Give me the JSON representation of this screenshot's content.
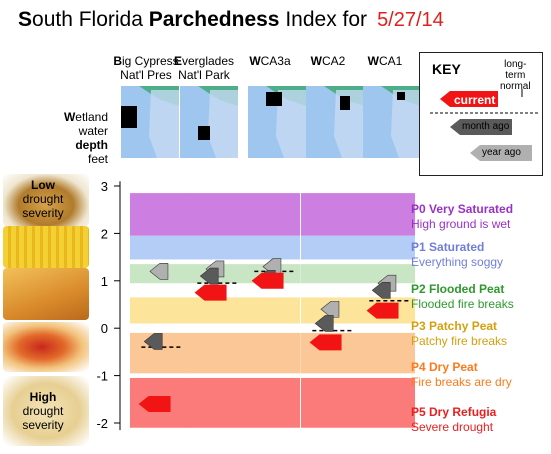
{
  "title": {
    "s": "S",
    "outh": "outh Florida ",
    "bold": "Parchedness",
    "rest": " Index for",
    "date": "5/27/14"
  },
  "regions": [
    {
      "line1_bold": "B",
      "line1": "ig Cypress",
      "line2": "Nat'l Pres"
    },
    {
      "line1_bold": "E",
      "line1": "verglades",
      "line2": "Nat'l Park"
    },
    {
      "line1_bold": "W",
      "line1": "CA3a",
      "line2": ""
    },
    {
      "line1_bold": "W",
      "line1": "CA2",
      "line2": ""
    },
    {
      "line1_bold": "W",
      "line1": "CA1",
      "line2": ""
    }
  ],
  "y_label": {
    "w": "W",
    "etland": "etland",
    "water": "water",
    "depth": "depth",
    "feet": "feet"
  },
  "food_labels": {
    "low_line1": "Low",
    "low_line2": "drought",
    "low_line3": "severity",
    "high_line1": "High",
    "high_line2": "drought",
    "high_line3": "severity"
  },
  "key": {
    "title": "KEY",
    "long_term": "long-",
    "long_term2": "term",
    "normal": "normal",
    "current": "current",
    "month_ago": "month ago",
    "year_ago": "year ago"
  },
  "legend": [
    {
      "code": "P0 Very Saturated",
      "desc": "High ground is wet",
      "color": "#9b30c8"
    },
    {
      "code": "P1 Saturated",
      "desc": "Everything soggy",
      "color": "#6f7fd8"
    },
    {
      "code": "P2 Flooded Peat",
      "desc": "Flooded fire breaks",
      "color": "#2e9a2e"
    },
    {
      "code": "P3 Patchy Peat",
      "desc": "Patchy fire breaks",
      "color": "#d4a010"
    },
    {
      "code": "P4 Dry Peat",
      "desc": "Fire breaks are dry",
      "color": "#ff7a1a"
    },
    {
      "code": "P5 Dry Refugia",
      "desc": "Severe drought",
      "color": "#e82020"
    }
  ],
  "colors": {
    "p0": "#cc7fe0",
    "p1": "#b3cdf7",
    "p2": "#c9e6c4",
    "p3": "#fce59a",
    "p4": "#fcc796",
    "p5": "#fb7b7b",
    "current": "#f21414",
    "month": "#5a5a5a",
    "year": "#b0b0b0"
  },
  "chart_data": {
    "type": "bar",
    "title": "South Florida Parchedness Index for 5/27/14",
    "ylabel": "Wetland water depth feet",
    "ylim": [
      -2.2,
      3.2
    ],
    "yticks": [
      3,
      2,
      1,
      0,
      -1,
      -2
    ],
    "categories": [
      "Big Cypress Nat'l Pres",
      "Everglades Nat'l Park",
      "WCA3a",
      "WCA2",
      "WCA1"
    ],
    "bands": [
      {
        "name": "P0",
        "from": 1.95,
        "to": 2.85
      },
      {
        "name": "P1",
        "from": 1.45,
        "to": 1.95
      },
      {
        "name": "P2",
        "from": 0.95,
        "to": 1.35
      },
      {
        "name": "P3",
        "from": 0.1,
        "to": 0.65
      },
      {
        "name": "P4",
        "from": -0.95,
        "to": -0.1
      },
      {
        "name": "P5",
        "from": -2.1,
        "to": -1.05
      }
    ],
    "series": [
      {
        "name": "current",
        "values": [
          -1.6,
          0.75,
          1.0,
          -0.3,
          0.37
        ]
      },
      {
        "name": "month ago",
        "values": [
          -0.28,
          1.1,
          1.05,
          0.1,
          0.8
        ]
      },
      {
        "name": "year ago",
        "values": [
          1.2,
          1.25,
          1.3,
          0.4,
          0.95
        ]
      },
      {
        "name": "long-term normal",
        "values": [
          -0.4,
          0.95,
          1.2,
          -0.05,
          0.58
        ]
      }
    ]
  }
}
